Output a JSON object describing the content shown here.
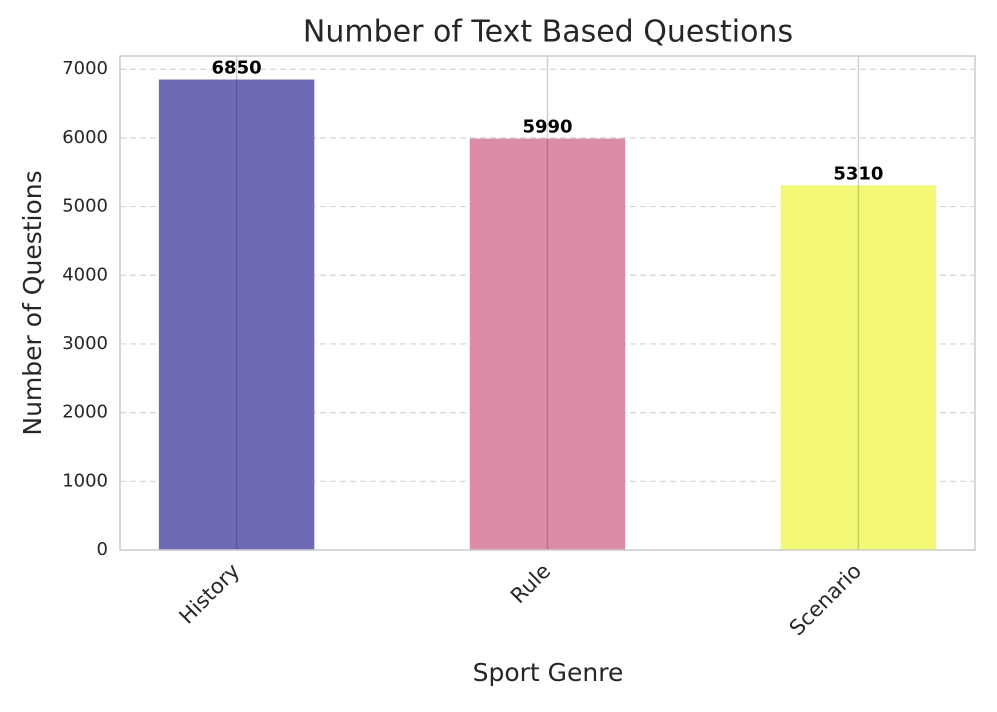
{
  "chart_data": {
    "type": "bar",
    "title": "Number of Text Based Questions",
    "x_label": "Sport Genre",
    "y_label": "Number of Questions",
    "categories": [
      "History",
      "Rule",
      "Scenario"
    ],
    "values": [
      6850,
      5990,
      5310
    ],
    "colors": [
      "#6f6ab5",
      "#dd8ca8",
      "#f3f977"
    ],
    "ylim": [
      0,
      7192.5
    ],
    "yticks": [
      0,
      1000,
      2000,
      3000,
      4000,
      5000,
      6000,
      7000
    ],
    "grid": true
  }
}
